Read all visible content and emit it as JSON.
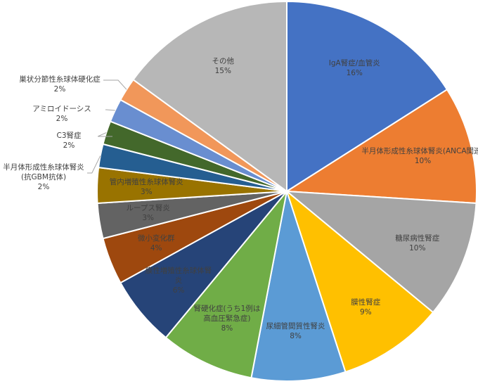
{
  "chart_data": {
    "type": "pie",
    "categories": [
      "IgA腎症/血管炎",
      "半月体形成性糸球体腎炎(ANCA関連)",
      "糖尿病性腎症",
      "膜性腎症",
      "尿細管間質性腎炎",
      "腎硬化症(うち1例は\n高血圧緊急症)",
      "膜性増殖性糸球体腎\n炎",
      "微小変化群",
      "ループス腎炎",
      "管内増殖性糸球体腎炎",
      "半月体形成性糸球体腎炎\n(抗GBM抗体)",
      "C3腎症",
      "アミロイドーシス",
      "巣状分節性糸球体硬化症",
      "その他"
    ],
    "values": [
      16,
      10,
      10,
      9,
      8,
      8,
      6,
      4,
      3,
      3,
      2,
      2,
      2,
      2,
      15
    ],
    "value_labels": [
      "16%",
      "10%",
      "10%",
      "9%",
      "8%",
      "8%",
      "6%",
      "4%",
      "3%",
      "3%",
      "2%",
      "2%",
      "2%",
      "2%",
      "15%"
    ],
    "colors": [
      "#4472c4",
      "#ed7d31",
      "#a5a5a5",
      "#ffc000",
      "#5b9bd5",
      "#70ad47",
      "#264478",
      "#9e480e",
      "#636363",
      "#997300",
      "#255e91",
      "#43682b",
      "#698ed0",
      "#f1975a",
      "#b7b7b7"
    ]
  }
}
